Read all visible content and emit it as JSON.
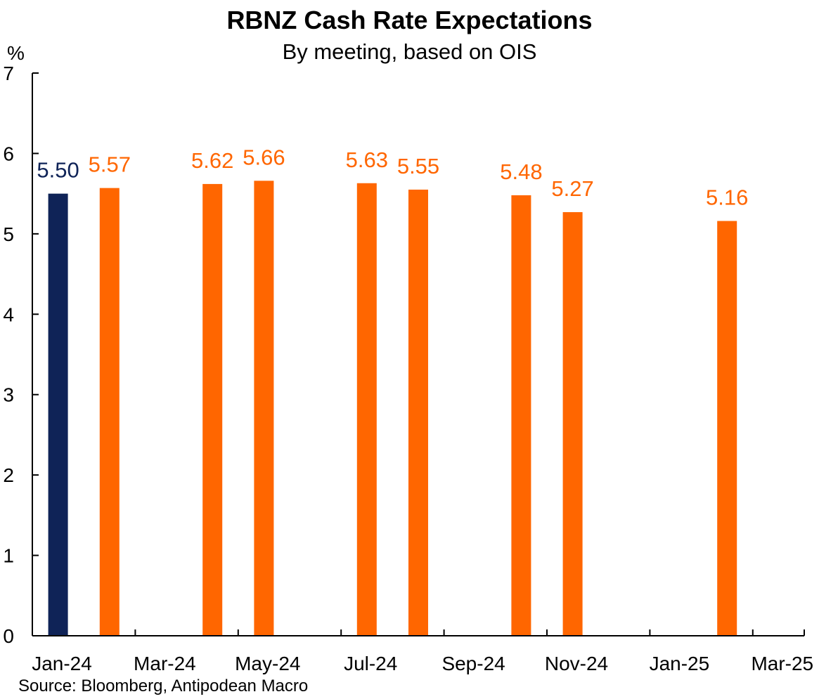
{
  "chart_data": {
    "type": "bar",
    "title": "RBNZ Cash Rate Expectations",
    "subtitle": "By meeting, based on OIS",
    "ylabel": "%",
    "xlabel": "",
    "ylim": [
      0,
      7
    ],
    "yticks": [
      0,
      1,
      2,
      3,
      4,
      5,
      6,
      7
    ],
    "x_tick_labels": [
      "Jan-24",
      "Mar-24",
      "May-24",
      "Jul-24",
      "Sep-24",
      "Nov-24",
      "Jan-25",
      "Mar-25"
    ],
    "x_range_months": [
      0,
      15
    ],
    "bars": [
      {
        "month_index": 0.5,
        "value": 5.5,
        "label": "5.50",
        "color": "#0f2357",
        "series": "current"
      },
      {
        "month_index": 1.5,
        "value": 5.57,
        "label": "5.57",
        "color": "#ff6600",
        "series": "expected"
      },
      {
        "month_index": 3.5,
        "value": 5.62,
        "label": "5.62",
        "color": "#ff6600",
        "series": "expected"
      },
      {
        "month_index": 4.5,
        "value": 5.66,
        "label": "5.66",
        "color": "#ff6600",
        "series": "expected"
      },
      {
        "month_index": 6.5,
        "value": 5.63,
        "label": "5.63",
        "color": "#ff6600",
        "series": "expected"
      },
      {
        "month_index": 7.5,
        "value": 5.55,
        "label": "5.55",
        "color": "#ff6600",
        "series": "expected"
      },
      {
        "month_index": 9.5,
        "value": 5.48,
        "label": "5.48",
        "color": "#ff6600",
        "series": "expected"
      },
      {
        "month_index": 10.5,
        "value": 5.27,
        "label": "5.27",
        "color": "#ff6600",
        "series": "expected"
      },
      {
        "month_index": 13.5,
        "value": 5.16,
        "label": "5.16",
        "color": "#ff6600",
        "series": "expected"
      }
    ],
    "source": "Source: Bloomberg, Antipodean Macro"
  }
}
